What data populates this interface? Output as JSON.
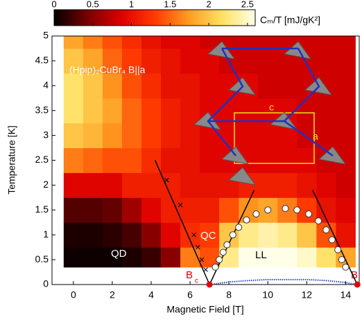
{
  "chart_data": {
    "type": "heatmap",
    "x_label": "Magnetic Field [T]",
    "y_label": "Temperature [K]",
    "colorbar_label": "Cₘ/T [mJ/gK²]",
    "xlim": [
      -1.1,
      14.7
    ],
    "ylim": [
      0,
      5
    ],
    "xticks": [
      0,
      2,
      4,
      6,
      8,
      10,
      12,
      14
    ],
    "yticks": [
      0,
      0.5,
      1,
      1.5,
      2,
      2.5,
      3,
      3.5,
      4,
      4.5,
      5
    ],
    "zlim": [
      0,
      2.6
    ],
    "zticks": [
      0,
      0.5,
      1,
      1.5,
      2,
      2.5
    ],
    "colormap": [
      "#000000",
      "#7a0000",
      "#dd0000",
      "#ff3a00",
      "#ff9a20",
      "#ffe060",
      "#ffffe8"
    ],
    "x_edges": [
      -0.5,
      0.5,
      1.5,
      2.5,
      3.5,
      4.5,
      5.5,
      6.5,
      7.5,
      8.5,
      9.5,
      10.5,
      11.5,
      12.5,
      13.5,
      14.5
    ],
    "y_edges": [
      0.35,
      0.75,
      1.25,
      1.75,
      2.25,
      2.75,
      3.25,
      3.75,
      4.25,
      4.75,
      5
    ],
    "z": [
      [
        0.05,
        0.05,
        0.05,
        0.1,
        0.2,
        0.5,
        1.6,
        1.4,
        2.3,
        2.6,
        2.6,
        2.6,
        2.5,
        2.2,
        1.8
      ],
      [
        0.1,
        0.1,
        0.15,
        0.25,
        0.5,
        0.9,
        1.2,
        1.3,
        2.0,
        2.3,
        2.4,
        2.3,
        2.0,
        1.4,
        1.0
      ],
      [
        0.3,
        0.3,
        0.35,
        0.6,
        0.9,
        1.1,
        1.1,
        1.1,
        1.4,
        1.7,
        1.8,
        1.6,
        1.3,
        1.0,
        0.9
      ],
      [
        0.9,
        0.9,
        0.9,
        1.1,
        1.1,
        1.1,
        1.0,
        1.0,
        1.0,
        1.1,
        1.1,
        1.1,
        1.0,
        0.9,
        0.8
      ],
      [
        1.6,
        1.5,
        1.4,
        1.4,
        1.2,
        1.0,
        1.0,
        0.9,
        0.9,
        0.9,
        0.9,
        0.9,
        0.9,
        0.8,
        0.8
      ],
      [
        2.0,
        1.9,
        1.7,
        1.5,
        1.3,
        1.1,
        1.0,
        0.9,
        0.9,
        0.9,
        0.9,
        0.9,
        0.8,
        0.8,
        0.8
      ],
      [
        2.2,
        2.0,
        1.8,
        1.5,
        1.3,
        1.1,
        1.0,
        0.9,
        0.9,
        0.9,
        0.9,
        0.9,
        0.8,
        0.8,
        0.8
      ],
      [
        2.2,
        2.0,
        1.7,
        1.4,
        1.2,
        1.0,
        1.0,
        0.9,
        0.9,
        0.9,
        0.8,
        0.8,
        0.8,
        0.8,
        0.8
      ],
      [
        2.0,
        1.8,
        1.5,
        1.3,
        1.1,
        1.0,
        0.9,
        0.9,
        0.8,
        0.8,
        0.8,
        0.8,
        0.8,
        0.8,
        0.8
      ],
      [
        1.8,
        1.6,
        1.4,
        1.2,
        1.0,
        0.9,
        0.9,
        0.8,
        0.8,
        0.8,
        0.8,
        0.8,
        0.8,
        0.8,
        0.8
      ]
    ],
    "dome": {
      "x": [
        7.3,
        7.5,
        7.7,
        7.9,
        8.2,
        8.5,
        8.9,
        9.4,
        10.0,
        10.9,
        11.5,
        12.1,
        12.6,
        13.0,
        13.3,
        13.6,
        13.8,
        14.0
      ],
      "y": [
        0.35,
        0.5,
        0.65,
        0.8,
        1.0,
        1.15,
        1.3,
        1.42,
        1.5,
        1.53,
        1.5,
        1.42,
        1.28,
        1.1,
        0.9,
        0.7,
        0.5,
        0.35
      ]
    },
    "crosses": {
      "x": [
        6.8,
        6.6,
        6.4,
        6.2,
        5.5,
        4.8
      ],
      "y": [
        0.3,
        0.5,
        0.75,
        1.0,
        1.6,
        2.1
      ]
    },
    "boundary_left": {
      "x": [
        7.0,
        4.2
      ],
      "y": [
        0,
        2.5
      ]
    },
    "dome_line_left": {
      "x": [
        7.0,
        9.3
      ],
      "y": [
        0,
        1.9
      ]
    },
    "dome_line_right": {
      "x": [
        14.6,
        12.3
      ],
      "y": [
        0,
        1.9
      ]
    },
    "critical_points": {
      "x": [
        7.0,
        14.6
      ],
      "y": [
        0,
        0
      ]
    },
    "low_curve": {
      "x": [
        7.0,
        8.0,
        9.0,
        10.0,
        11.0,
        12.0,
        13.0,
        14.0,
        14.6
      ],
      "y": [
        0,
        0.05,
        0.08,
        0.1,
        0.1,
        0.1,
        0.08,
        0.04,
        0
      ]
    },
    "annotations": {
      "compound": "(Hpip)₂CuBr₄ B||a",
      "qd": "QD",
      "qc": "QC",
      "ll": "LL",
      "bc": "B",
      "bc_sub": "c",
      "b": "B",
      "axis_c": "c",
      "axis_a": "a"
    }
  }
}
